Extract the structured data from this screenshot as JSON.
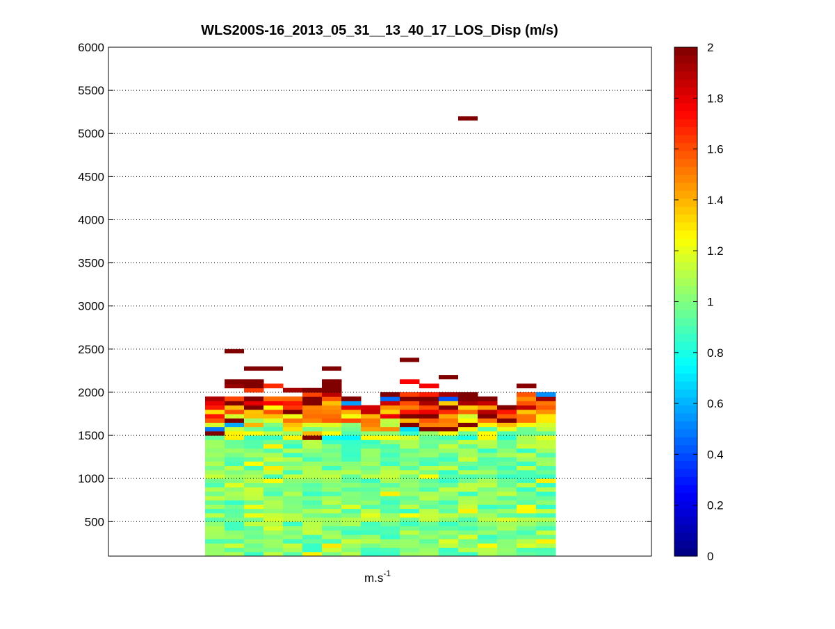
{
  "chart_data": {
    "type": "heatmap",
    "title": "WLS200S-16_2013_05_31__13_40_17_LOS_Disp (m/s)",
    "xlabel": "m.s",
    "xlabel_superscript": "-1",
    "ylabel": "",
    "ylim": [
      100,
      6000
    ],
    "yticks": [
      500,
      1000,
      1500,
      2000,
      2500,
      3000,
      3500,
      4000,
      4500,
      5000,
      5500,
      6000
    ],
    "grid": "horizontal dotted",
    "colormap": "jet",
    "clim": [
      0,
      2
    ],
    "colorbar_ticks": [
      0,
      0.2,
      0.4,
      0.6,
      0.8,
      1,
      1.2,
      1.4,
      1.6,
      1.8,
      2
    ],
    "columns": 18,
    "column_range": [
      5,
      22
    ],
    "cell_height_m": 50,
    "bulk_layer": {
      "from_m": 100,
      "to_m": 1450,
      "typical_value": 1.0,
      "range": [
        0.75,
        1.3
      ]
    },
    "top_valid_m": [
      2000,
      2450,
      2250,
      2250,
      2050,
      2050,
      2250,
      2000,
      1850,
      2000,
      2350,
      2100,
      2150,
      5150,
      2000,
      1850,
      2100,
      2000
    ],
    "high_cells": [
      {
        "col": 1,
        "y": 2450,
        "value": 2.0
      },
      {
        "col": 2,
        "y": 2250,
        "value": 2.0
      },
      {
        "col": 3,
        "y": 2250,
        "value": 2.0
      },
      {
        "col": 6,
        "y": 2250,
        "value": 2.0
      },
      {
        "col": 10,
        "y": 2350,
        "value": 2.0
      },
      {
        "col": 12,
        "y": 2150,
        "value": 2.0
      },
      {
        "col": 13,
        "y": 5150,
        "value": 2.0
      }
    ]
  },
  "colorbar": {
    "label_values": [
      "0",
      "0.2",
      "0.4",
      "0.6",
      "0.8",
      "1",
      "1.2",
      "1.4",
      "1.6",
      "1.8",
      "2"
    ]
  }
}
